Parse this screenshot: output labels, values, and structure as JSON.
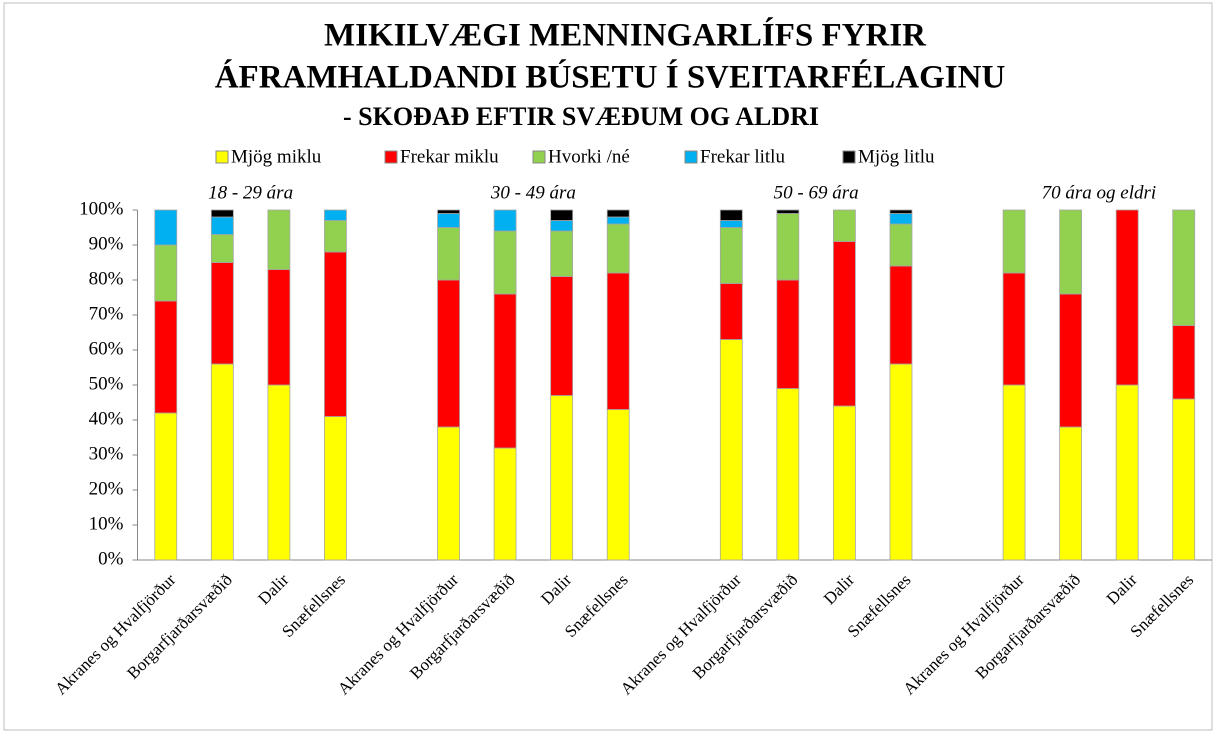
{
  "chart_data": {
    "type": "stacked_bar",
    "title": [
      "MIKILVÆGI MENNINGARLÍFS FYRIR",
      "ÁFRAMHALDANDI BÚSETU Í SVEITARFÉLAGINU"
    ],
    "subtitle": "- SKOÐAÐ EFTIR SVÆÐUM OG ALDRI",
    "group_labels": [
      "18 - 29 ára",
      "30 - 49 ára",
      "50 - 69 ára",
      "70 ára og eldri"
    ],
    "categories": [
      "Akranes og Hvalfjörður",
      "Borgarfjarðarsvæðið",
      "Dalir",
      "Snæfellsnes",
      null,
      "Akranes og Hvalfjörður",
      "Borgarfjarðarsvæðið",
      "Dalir",
      "Snæfellsnes",
      null,
      "Akranes og Hvalfjörður",
      "Borgarfjarðarsvæðið",
      "Dalir",
      "Snæfellsnes",
      null,
      "Akranes og Hvalfjörður",
      "Borgarfjarðarsvæðið",
      "Dalir",
      "Snæfellsnes"
    ],
    "series": [
      {
        "name": "Mjög miklu",
        "color": "#ffff00",
        "values": [
          42,
          56,
          50,
          41,
          null,
          38,
          32,
          47,
          43,
          null,
          63,
          49,
          44,
          56,
          null,
          50,
          38,
          50,
          46
        ]
      },
      {
        "name": "Frekar miklu",
        "color": "#ff0000",
        "values": [
          32,
          29,
          33,
          47,
          null,
          42,
          44,
          34,
          39,
          null,
          16,
          31,
          47,
          28,
          null,
          32,
          38,
          50,
          21
        ]
      },
      {
        "name": "Hvorki /né",
        "color": "#92d050",
        "values": [
          16,
          8,
          17,
          9,
          null,
          15,
          18,
          13,
          14,
          null,
          16,
          19,
          9,
          12,
          null,
          18,
          24,
          0,
          33
        ]
      },
      {
        "name": "Frekar litlu",
        "color": "#00b0f0",
        "values": [
          10,
          5,
          0,
          3,
          null,
          4,
          6,
          3,
          2,
          null,
          2,
          0,
          0,
          3,
          null,
          0,
          0,
          0,
          0
        ]
      },
      {
        "name": "Mjög litlu",
        "color": "#000000",
        "values": [
          0,
          2,
          0,
          0,
          null,
          1,
          0,
          3,
          2,
          null,
          3,
          1,
          0,
          1,
          null,
          0,
          0,
          0,
          0
        ]
      }
    ],
    "ylim": [
      0,
      100
    ],
    "yticks": [
      {
        "value": 0,
        "label": "0%"
      },
      {
        "value": 10,
        "label": "10%"
      },
      {
        "value": 20,
        "label": "20%"
      },
      {
        "value": 30,
        "label": "30%"
      },
      {
        "value": 40,
        "label": "40%"
      },
      {
        "value": 50,
        "label": "50%"
      },
      {
        "value": 60,
        "label": "60%"
      },
      {
        "value": 70,
        "label": "70%"
      },
      {
        "value": 80,
        "label": "80%"
      },
      {
        "value": 90,
        "label": "90%"
      },
      {
        "value": 100,
        "label": "100%"
      }
    ],
    "legend": "top"
  }
}
